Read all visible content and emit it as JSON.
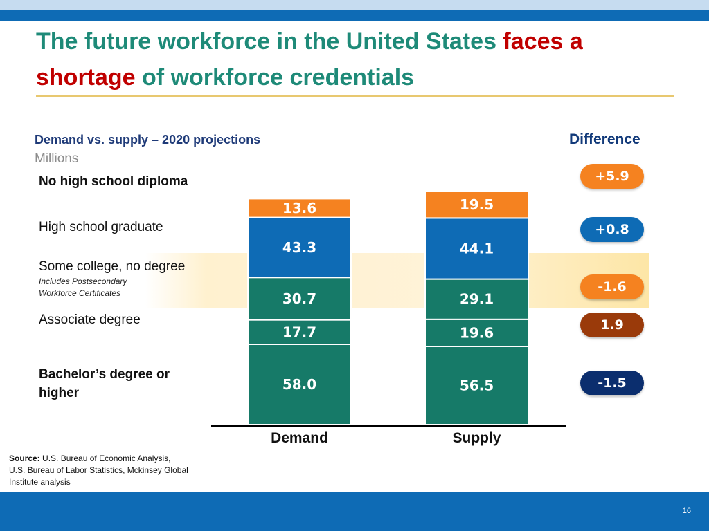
{
  "slide": {
    "title_part1": "The future workforce in the United States ",
    "title_accent": "faces a shortage",
    "title_part2": " of workforce credentials",
    "subtitle": "Demand vs. supply – 2020 projections",
    "units": "Millions",
    "difference_header": "Difference",
    "source_label": "Source:",
    "source_text": " U.S. Bureau of Economic Analysis, U.S. Bureau of Labor Statistics, Mckinsey Global Institute analysis",
    "page_number": "16"
  },
  "colors": {
    "title": "#1e8a78",
    "title_accent": "#c00000",
    "no_diploma": "#f58220",
    "hs_grad": "#0e6bb5",
    "college": "#167a68",
    "band": "#0e6bb5",
    "pill_orange": "#f58220",
    "pill_blue": "#0e6bb5",
    "pill_brown": "#9a3a0a",
    "pill_navy": "#0b2e6e"
  },
  "chart_data": {
    "type": "bar",
    "stacked": true,
    "categories": [
      "Demand",
      "Supply"
    ],
    "series": [
      {
        "name": "No high school diploma",
        "values": [
          13.6,
          19.5
        ],
        "color": "#f58220"
      },
      {
        "name": "High school graduate",
        "values": [
          43.3,
          44.1
        ],
        "color": "#0e6bb5"
      },
      {
        "name": "Some college, no degree",
        "note": "Includes Postsecondary Workforce Certificates",
        "values": [
          30.7,
          29.1
        ],
        "color": "#167a68"
      },
      {
        "name": "Associate degree",
        "values": [
          17.7,
          19.6
        ],
        "color": "#167a68"
      },
      {
        "name": "Bachelor’s degree or higher",
        "values": [
          58.0,
          56.5
        ],
        "color": "#167a68"
      }
    ],
    "difference": [
      {
        "label": "+5.9",
        "color": "#f58220"
      },
      {
        "label": "+0.8",
        "color": "#0e6bb5"
      },
      {
        "label": "-1.6",
        "color": "#f58220"
      },
      {
        "label": "1.9",
        "color": "#9a3a0a"
      },
      {
        "label": "-1.5",
        "color": "#0b2e6e"
      }
    ],
    "title": "Demand vs. supply – 2020 projections",
    "ylabel": "Millions",
    "grid": false,
    "legend": "left row labels"
  }
}
